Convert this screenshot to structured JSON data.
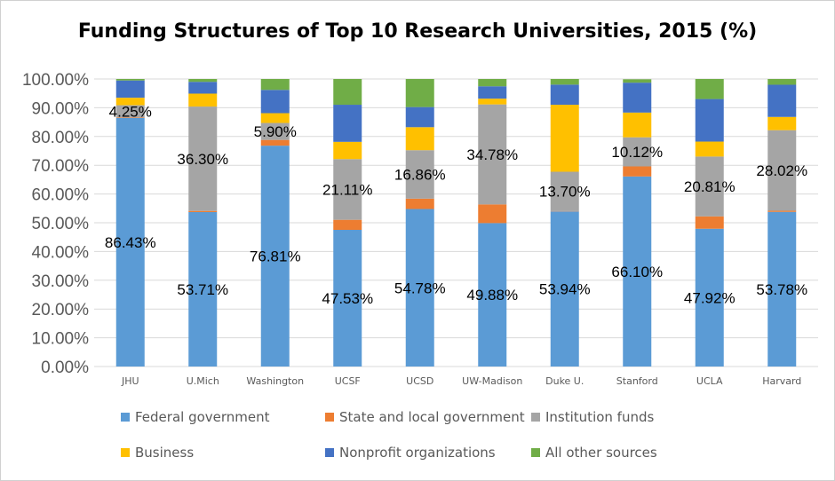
{
  "chart_data": {
    "type": "bar",
    "stacked": true,
    "title": "Funding Structures of Top 10 Research Universities, 2015 (%)",
    "xlabel": "",
    "ylabel": "",
    "ylim": [
      0,
      100
    ],
    "yticks": [
      "0.00%",
      "10.00%",
      "20.00%",
      "30.00%",
      "40.00%",
      "50.00%",
      "60.00%",
      "70.00%",
      "80.00%",
      "90.00%",
      "100.00%"
    ],
    "grid": true,
    "legend_position": "bottom",
    "categories": [
      "JHU",
      "U.Mich",
      "Washington",
      "UCSF",
      "UCSD",
      "UW-Madison",
      "Duke U.",
      "Stanford",
      "UCLA",
      "Harvard"
    ],
    "series": [
      {
        "name": "Federal government",
        "color": "#5B9BD5",
        "values": [
          86.43,
          53.71,
          76.81,
          47.53,
          54.78,
          49.88,
          53.94,
          66.1,
          47.92,
          53.78
        ]
      },
      {
        "name": "State and local government",
        "color": "#ED7D31",
        "values": [
          0.2,
          0.4,
          2.0,
          3.5,
          3.6,
          6.5,
          0.1,
          3.5,
          4.3,
          0.4
        ]
      },
      {
        "name": "Institution funds",
        "color": "#A5A5A5",
        "values": [
          4.25,
          36.3,
          5.9,
          21.11,
          16.86,
          34.78,
          13.7,
          10.12,
          20.81,
          28.02
        ]
      },
      {
        "name": "Business",
        "color": "#FFC000",
        "values": [
          2.6,
          4.5,
          3.4,
          6.0,
          8.0,
          2.0,
          23.3,
          8.6,
          5.2,
          4.6
        ]
      },
      {
        "name": "Nonprofit organizations",
        "color": "#4472C4",
        "values": [
          6.0,
          4.1,
          8.1,
          12.9,
          7.0,
          4.3,
          7.0,
          10.4,
          14.8,
          11.2
        ]
      },
      {
        "name": "All other sources",
        "color": "#70AD47",
        "values": [
          0.52,
          0.99,
          3.79,
          8.96,
          9.76,
          2.54,
          1.96,
          1.18,
          6.97,
          2.0
        ]
      }
    ],
    "data_labels": {
      "Federal government": [
        "86.43%",
        "53.71%",
        "76.81%",
        "47.53%",
        "54.78%",
        "49.88%",
        "53.94%",
        "66.10%",
        "47.92%",
        "53.78%"
      ],
      "Institution funds": [
        "4.25%",
        "36.30%",
        "5.90%",
        "21.11%",
        "16.86%",
        "34.78%",
        "13.70%",
        "10.12%",
        "20.81%",
        "28.02%"
      ]
    }
  }
}
